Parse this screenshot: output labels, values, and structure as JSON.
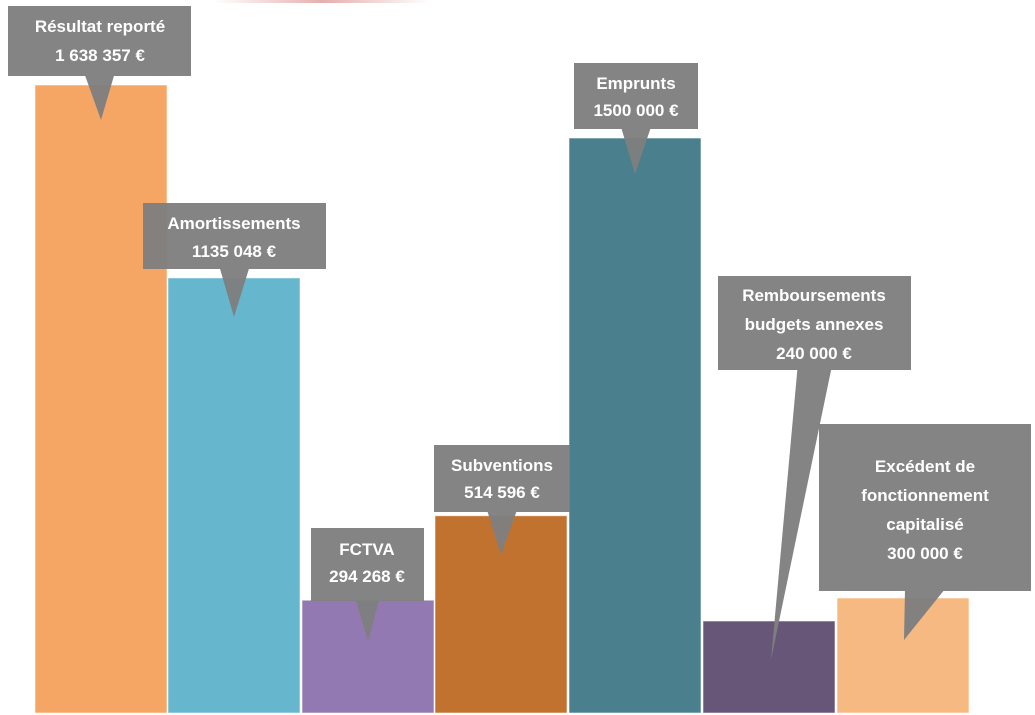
{
  "chart_data": {
    "type": "bar",
    "title": "",
    "xlabel": "",
    "ylabel": "",
    "ylim": [
      0,
      1638357
    ],
    "grid": false,
    "legend": "none",
    "categories": [
      "Résultat reporté",
      "Amortissements",
      "FCTVA",
      "Subventions",
      "Emprunts",
      "Remboursements budgets annexes",
      "Excédent de fonctionnement capitalisé"
    ],
    "values": [
      1638357,
      1135048,
      294268,
      514596,
      1500000,
      240000,
      300000
    ],
    "colors": [
      "#F6A664",
      "#66B7CE",
      "#9379B1",
      "#C2722F",
      "#4A7F8D",
      "#675677",
      "#F7B982"
    ],
    "callouts": [
      {
        "lines": [
          "Résultat reporté",
          "1 638 357 €"
        ]
      },
      {
        "lines": [
          "Amortissements",
          "1135 048 €"
        ]
      },
      {
        "lines": [
          "FCTVA",
          "294 268 €"
        ]
      },
      {
        "lines": [
          "Subventions",
          "514 596 €"
        ]
      },
      {
        "lines": [
          "Emprunts",
          "1500 000 €"
        ]
      },
      {
        "lines": [
          "Remboursements",
          "budgets annexes",
          "240 000 €"
        ]
      },
      {
        "lines": [
          "Excédent de",
          "fonctionnement",
          "capitalisé",
          "300 000 €"
        ]
      }
    ],
    "callout_color": "#7F7F7F"
  }
}
